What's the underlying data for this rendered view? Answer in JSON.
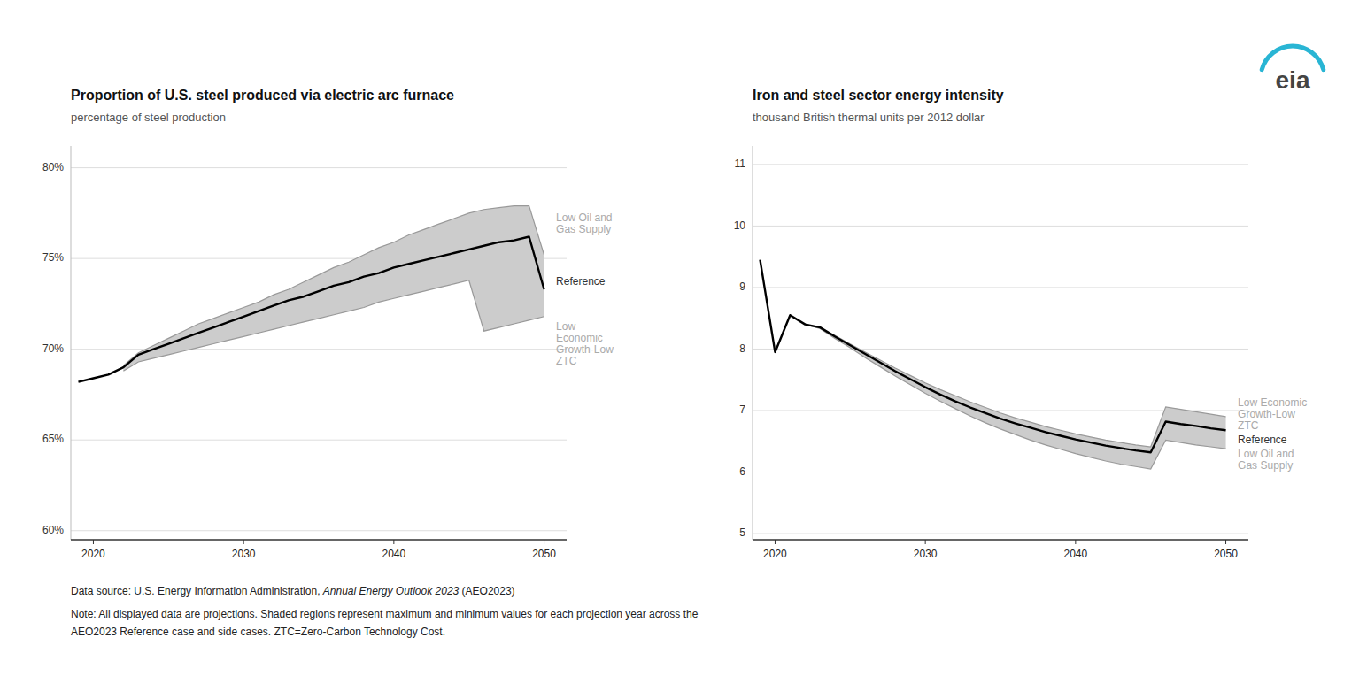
{
  "chart_data": [
    {
      "type": "line",
      "title": "Proportion of U.S. steel produced via electric arc furnace",
      "subtitle": "percentage of steel production",
      "xlim": [
        2018.5,
        2051.5
      ],
      "ylim": [
        0.595,
        0.812
      ],
      "xticks": [
        2020,
        2030,
        2040,
        2050
      ],
      "yticks": [
        {
          "value": 0.6,
          "label": "60%"
        },
        {
          "value": 0.65,
          "label": "65%"
        },
        {
          "value": 0.7,
          "label": "70%"
        },
        {
          "value": 0.75,
          "label": "75%"
        },
        {
          "value": 0.8,
          "label": "80%"
        }
      ],
      "grid": true,
      "series": [
        {
          "type": "band",
          "color": "#cccccc",
          "x": [
            2022,
            2023,
            2024,
            2025,
            2026,
            2027,
            2028,
            2029,
            2030,
            2031,
            2032,
            2033,
            2034,
            2035,
            2036,
            2037,
            2038,
            2039,
            2040,
            2041,
            2042,
            2043,
            2044,
            2045,
            2046,
            2047,
            2048,
            2049,
            2050
          ],
          "values": [
            0.691,
            0.698,
            0.702,
            0.706,
            0.71,
            0.714,
            0.717,
            0.72,
            0.723,
            0.726,
            0.73,
            0.733,
            0.737,
            0.741,
            0.745,
            0.748,
            0.752,
            0.756,
            0.759,
            0.763,
            0.766,
            0.769,
            0.772,
            0.775,
            0.777,
            0.778,
            0.779,
            0.779,
            0.752
          ],
          "lower": [
            0.688,
            0.693,
            0.695,
            0.697,
            0.699,
            0.701,
            0.703,
            0.705,
            0.707,
            0.709,
            0.711,
            0.713,
            0.715,
            0.717,
            0.719,
            0.721,
            0.723,
            0.726,
            0.728,
            0.73,
            0.732,
            0.734,
            0.736,
            0.738,
            0.71,
            0.712,
            0.714,
            0.716,
            0.718
          ]
        },
        {
          "type": "line",
          "color": "#000000",
          "x": [
            2019,
            2020,
            2021,
            2022,
            2023,
            2024,
            2025,
            2026,
            2027,
            2028,
            2029,
            2030,
            2031,
            2032,
            2033,
            2034,
            2035,
            2036,
            2037,
            2038,
            2039,
            2040,
            2041,
            2042,
            2043,
            2044,
            2045,
            2046,
            2047,
            2048,
            2049,
            2050
          ],
          "values": [
            0.682,
            0.684,
            0.686,
            0.69,
            0.697,
            0.7,
            0.703,
            0.706,
            0.709,
            0.712,
            0.715,
            0.718,
            0.721,
            0.724,
            0.727,
            0.729,
            0.732,
            0.735,
            0.737,
            0.74,
            0.742,
            0.745,
            0.747,
            0.749,
            0.751,
            0.753,
            0.755,
            0.757,
            0.759,
            0.76,
            0.762,
            0.733
          ]
        }
      ],
      "annotations": [
        {
          "text": "Low Oil and\nGas Supply",
          "x": 2050.8,
          "y": 0.769,
          "color": "#aaaaaa"
        },
        {
          "text": "Reference",
          "x": 2050.8,
          "y": 0.737,
          "color": "#333333"
        },
        {
          "text": "Low\nEconomic\nGrowth-Low\nZTC",
          "x": 2050.8,
          "y": 0.703,
          "color": "#aaaaaa"
        }
      ]
    },
    {
      "type": "line",
      "title": "Iron and steel sector energy intensity",
      "subtitle": "thousand British thermal units per 2012 dollar",
      "xlim": [
        2018.5,
        2051.5
      ],
      "ylim": [
        4.9,
        11.3
      ],
      "xticks": [
        2020,
        2030,
        2040,
        2050
      ],
      "yticks": [
        5,
        6,
        7,
        8,
        9,
        10,
        11
      ],
      "grid": true,
      "series": [
        {
          "type": "band",
          "color": "#cccccc",
          "x": [
            2022,
            2023,
            2024,
            2025,
            2026,
            2027,
            2028,
            2029,
            2030,
            2031,
            2032,
            2033,
            2034,
            2035,
            2036,
            2037,
            2038,
            2039,
            2040,
            2041,
            2042,
            2043,
            2044,
            2045,
            2046,
            2047,
            2048,
            2049,
            2050
          ],
          "values": [
            8.4,
            8.35,
            8.22,
            8.08,
            7.95,
            7.82,
            7.69,
            7.57,
            7.45,
            7.34,
            7.24,
            7.14,
            7.05,
            6.96,
            6.88,
            6.81,
            6.74,
            6.68,
            6.62,
            6.57,
            6.52,
            6.48,
            6.44,
            6.41,
            7.06,
            7.02,
            6.98,
            6.94,
            6.9
          ],
          "lower": [
            8.4,
            8.33,
            8.17,
            8.02,
            7.86,
            7.71,
            7.56,
            7.42,
            7.28,
            7.15,
            7.03,
            6.91,
            6.8,
            6.7,
            6.61,
            6.52,
            6.44,
            6.37,
            6.3,
            6.24,
            6.18,
            6.13,
            6.09,
            6.05,
            6.52,
            6.48,
            6.44,
            6.41,
            6.38
          ]
        },
        {
          "type": "line",
          "color": "#000000",
          "x": [
            2019,
            2020,
            2021,
            2022,
            2023,
            2024,
            2025,
            2026,
            2027,
            2028,
            2029,
            2030,
            2031,
            2032,
            2033,
            2034,
            2035,
            2036,
            2037,
            2038,
            2039,
            2040,
            2041,
            2042,
            2043,
            2044,
            2045,
            2046,
            2047,
            2048,
            2049,
            2050
          ],
          "values": [
            9.45,
            7.95,
            8.55,
            8.4,
            8.35,
            8.2,
            8.06,
            7.92,
            7.78,
            7.64,
            7.51,
            7.38,
            7.26,
            7.15,
            7.05,
            6.96,
            6.87,
            6.79,
            6.72,
            6.65,
            6.59,
            6.53,
            6.48,
            6.43,
            6.39,
            6.35,
            6.32,
            6.82,
            6.78,
            6.75,
            6.71,
            6.68
          ]
        }
      ],
      "annotations": [
        {
          "text": "Low Economic\nGrowth-Low\nZTC",
          "x": 2050.8,
          "y": 6.93,
          "color": "#aaaaaa"
        },
        {
          "text": "Reference",
          "x": 2050.8,
          "y": 6.68,
          "color": "#333333"
        },
        {
          "text": "Low Oil and\nGas Supply",
          "x": 2050.8,
          "y": 6.38,
          "color": "#aaaaaa"
        }
      ]
    }
  ],
  "source": [
    "Data source: U.S. Energy Information Administration, ",
    "Annual Energy Outlook 2023",
    " (AEO2023)"
  ],
  "note": [
    "Note: All displayed data are projections. Shaded regions represent maximum and minimum values for each projection year across the",
    "AEO2023 Reference case and side cases. ZTC=Zero-Carbon Technology Cost."
  ],
  "logo": {
    "text": "eia",
    "color": "#29b5d4"
  }
}
